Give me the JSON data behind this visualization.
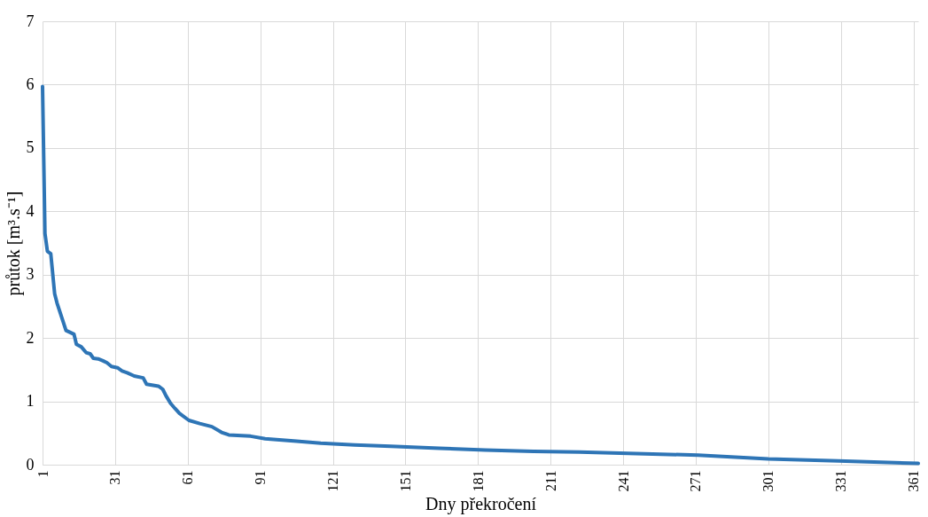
{
  "chart_data": {
    "type": "line",
    "xlabel": "Dny překročení",
    "ylabel": "průtok [m³.s⁻¹]",
    "xlim": [
      1,
      363
    ],
    "xticks": [
      1,
      31,
      61,
      91,
      121,
      151,
      181,
      211,
      241,
      271,
      301,
      331,
      361
    ],
    "ylim": [
      0,
      7
    ],
    "yticks": [
      0,
      1,
      2,
      3,
      4,
      5,
      6,
      7
    ],
    "grid": true,
    "marker": "none",
    "line_style": "solid",
    "series": [
      {
        "color": "#2e75b6",
        "x": [
          1,
          2,
          3,
          4.4,
          6,
          7,
          10.7,
          14,
          15,
          17,
          19,
          20.7,
          22,
          24,
          26,
          27.6,
          29.5,
          32,
          33.9,
          36,
          38.9,
          42.6,
          44,
          48.9,
          50.7,
          52,
          53.9,
          55.7,
          57.6,
          61.5,
          66,
          71,
          75,
          78,
          87,
          93,
          106,
          116,
          130,
          145,
          165,
          184,
          204,
          223,
          243,
          272,
          301,
          330,
          363
        ],
        "values": [
          5.97,
          3.65,
          3.37,
          3.33,
          2.7,
          2.55,
          2.12,
          2.06,
          1.9,
          1.86,
          1.77,
          1.75,
          1.68,
          1.67,
          1.64,
          1.61,
          1.55,
          1.53,
          1.48,
          1.45,
          1.4,
          1.37,
          1.27,
          1.24,
          1.19,
          1.09,
          0.97,
          0.89,
          0.81,
          0.7,
          0.65,
          0.6,
          0.51,
          0.47,
          0.45,
          0.41,
          0.37,
          0.34,
          0.31,
          0.29,
          0.26,
          0.23,
          0.21,
          0.2,
          0.18,
          0.15,
          0.09,
          0.06,
          0.02
        ]
      }
    ]
  }
}
